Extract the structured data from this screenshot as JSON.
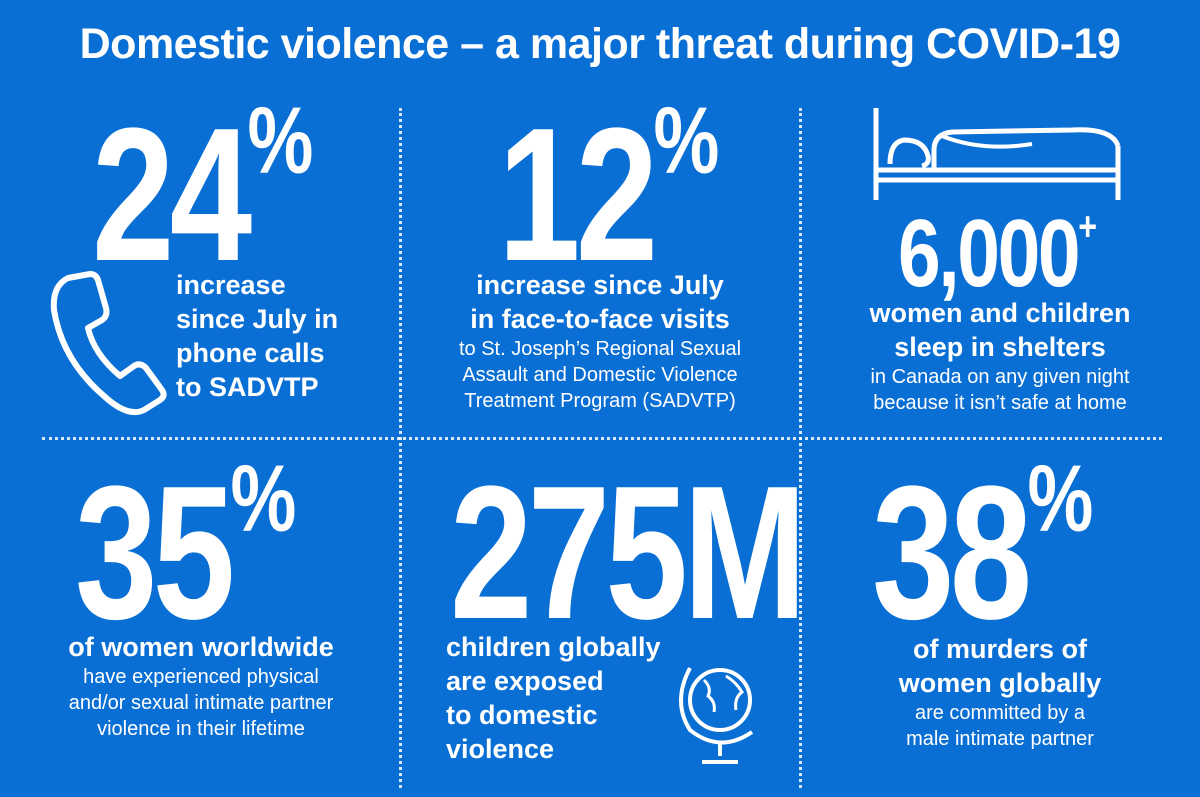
{
  "title": "Domestic violence – a major threat during COVID-19",
  "stats": {
    "s1": {
      "value": "24",
      "unit": "%",
      "bold_lines": [
        "increase",
        "since July in",
        "phone calls",
        "to SADVTP"
      ]
    },
    "s2": {
      "value": "12",
      "unit": "%",
      "bold_lines": [
        "increase since July",
        "in face-to-face visits"
      ],
      "reg_lines": [
        "to St. Joseph’s Regional Sexual",
        "Assault and Domestic Violence",
        "Treatment Program (SADVTP)"
      ]
    },
    "s3": {
      "value": "6,000",
      "unit": "+",
      "bold_lines": [
        "women and children",
        "sleep in shelters"
      ],
      "reg_lines": [
        "in Canada on any given night",
        "because it isn’t safe at home"
      ]
    },
    "s4": {
      "value": "35",
      "unit": "%",
      "bold_lines": [
        "of women worldwide"
      ],
      "reg_lines": [
        "have experienced physical",
        "and/or sexual intimate partner",
        "violence in their lifetime"
      ]
    },
    "s5": {
      "value": "275M",
      "bold_lines": [
        "children globally",
        "are exposed",
        "to domestic",
        "violence"
      ]
    },
    "s6": {
      "value": "38",
      "unit": "%",
      "bold_lines": [
        "of murders of",
        "women globally"
      ],
      "reg_lines": [
        "are committed by a",
        "male intimate partner"
      ]
    }
  }
}
